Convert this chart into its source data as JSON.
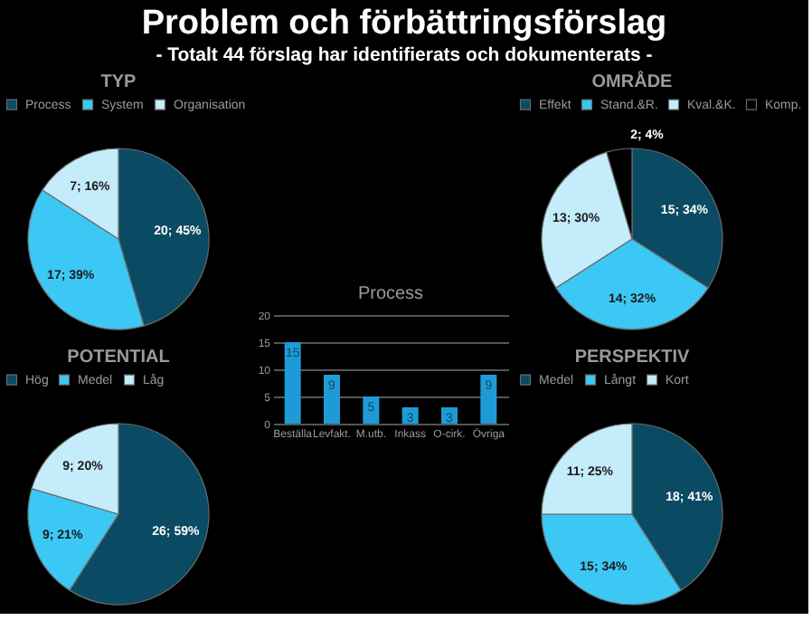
{
  "chart_data": [
    {
      "type": "other",
      "title": "Problem och förbättringsförslag",
      "subtitle": "- Totalt 44 förslag har identifierats och dokumenterats -"
    },
    {
      "type": "pie",
      "title": "TYP",
      "categories": [
        "Process",
        "System",
        "Organisation"
      ],
      "values": [
        20,
        17,
        7
      ],
      "value_labels": [
        "20; 45%",
        "17; 39%",
        "7; 16%"
      ],
      "colors": [
        "#0b4a63",
        "#3cc8f5",
        "#c4ecfb"
      ],
      "legend": "top"
    },
    {
      "type": "pie",
      "title": "OMRÅDE",
      "categories": [
        "Effekt",
        "Stand.&R.",
        "Kval.&K.",
        "Komp."
      ],
      "values": [
        15,
        14,
        13,
        2
      ],
      "value_labels": [
        "15; 34%",
        "14; 32%",
        "13; 30%",
        "2; 4%"
      ],
      "colors": [
        "#0b4a63",
        "#3cc8f5",
        "#c4ecfb",
        "#000000"
      ],
      "legend": "top"
    },
    {
      "type": "bar",
      "title": "Process",
      "categories": [
        "Beställa",
        "Levfakt.",
        "M.utb.",
        "Inkass",
        "O-cirk.",
        "Övriga"
      ],
      "values": [
        15,
        9,
        5,
        3,
        3,
        9
      ],
      "color": "#1e9bd7",
      "ylim": [
        0,
        20
      ],
      "yticks": [
        0,
        5,
        10,
        15,
        20
      ],
      "grid": "y",
      "data_labels": true
    },
    {
      "type": "pie",
      "title": "POTENTIAL",
      "categories": [
        "Hög",
        "Medel",
        "Låg"
      ],
      "values": [
        26,
        9,
        9
      ],
      "value_labels": [
        "26; 59%",
        "9; 21%",
        "9; 20%"
      ],
      "colors": [
        "#0b4a63",
        "#3cc8f5",
        "#c4ecfb"
      ],
      "legend": "top"
    },
    {
      "type": "pie",
      "title": "PERSPEKTIV",
      "categories": [
        "Medel",
        "Långt",
        "Kort"
      ],
      "values": [
        18,
        15,
        11
      ],
      "value_labels": [
        "18; 41%",
        "15; 34%",
        "11; 25%"
      ],
      "colors": [
        "#0b4a63",
        "#3cc8f5",
        "#c4ecfb"
      ],
      "legend": "top"
    }
  ]
}
